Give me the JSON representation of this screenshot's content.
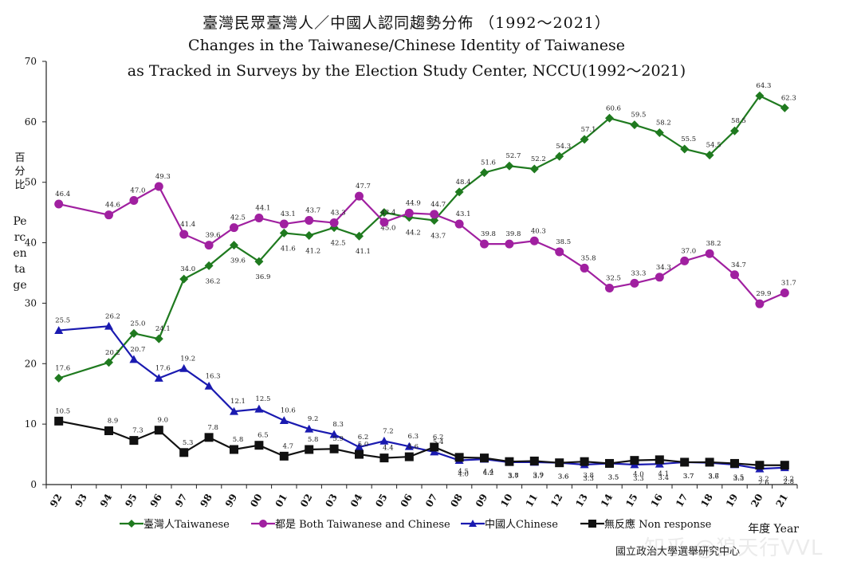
{
  "title_zh": "臺灣民眾臺灣人／中國人認同趨勢分佈 （1992～2021）",
  "title_en_line1": "Changes in the Taiwanese/Chinese Identity of Taiwanese",
  "title_en_line2": "as Tracked in Surveys by the Election Study Center, NCCU(1992～2021)",
  "ylabel_zh": "百分比",
  "ylabel_en": "Percentage",
  "year_label": "年度 Year",
  "source_note": "國立政治大學選舉研究中心",
  "watermark": "知乎 @狼天行VVL",
  "chart_data": {
    "type": "line",
    "title": "Changes in the Taiwanese/Chinese Identity of Taiwanese as Tracked in Surveys by the Election Study Center, NCCU(1992～2021)",
    "xlabel": "年度 Year",
    "ylabel": "百分比 Percentage",
    "ylim": [
      0,
      70
    ],
    "yticks": [
      0,
      10,
      20,
      30,
      40,
      50,
      60,
      70
    ],
    "categories": [
      "92",
      "93",
      "94",
      "95",
      "96",
      "97",
      "98",
      "99",
      "00",
      "01",
      "02",
      "03",
      "04",
      "05",
      "06",
      "07",
      "08",
      "09",
      "10",
      "11",
      "12",
      "13",
      "14",
      "15",
      "16",
      "17",
      "18",
      "19",
      "20",
      "21"
    ],
    "grid": false,
    "legend_position": "bottom",
    "series": [
      {
        "name": "臺灣人Taiwanese",
        "color": "#1f7a1f",
        "marker": "diamond",
        "x": [
          "92",
          "94",
          "95",
          "96",
          "97",
          "98",
          "99",
          "00",
          "01",
          "02",
          "03",
          "04",
          "05",
          "06",
          "07",
          "08",
          "09",
          "10",
          "11",
          "12",
          "13",
          "14",
          "15",
          "16",
          "17",
          "18",
          "19",
          "20",
          "21"
        ],
        "values": [
          17.6,
          20.2,
          25.0,
          24.1,
          34.0,
          36.2,
          39.6,
          36.9,
          41.6,
          41.2,
          42.5,
          41.1,
          45.0,
          44.2,
          43.7,
          48.4,
          51.6,
          52.7,
          52.2,
          54.3,
          57.1,
          60.6,
          59.5,
          58.2,
          55.5,
          54.5,
          58.5,
          64.3,
          62.3
        ],
        "labels": [
          "17.6",
          "20.2",
          "25.0",
          "24.1",
          "34.0",
          "36.2",
          "39.6",
          "36.9",
          "41.6",
          "41.2",
          "42.5",
          "41.1",
          "45.0",
          "44.2",
          "43.7",
          "48.4",
          "51.6",
          "52.7",
          "52.2",
          "54.3",
          "57.1",
          "60.6",
          "59.5",
          "58.2",
          "55.5",
          "54.5",
          "58.5",
          "64.3",
          "62.3"
        ]
      },
      {
        "name": "都是 Both Taiwanese and Chinese",
        "color": "#a020a0",
        "marker": "circle",
        "x": [
          "92",
          "94",
          "95",
          "96",
          "97",
          "98",
          "99",
          "00",
          "01",
          "02",
          "03",
          "04",
          "05",
          "06",
          "07",
          "08",
          "09",
          "10",
          "11",
          "12",
          "13",
          "14",
          "15",
          "16",
          "17",
          "18",
          "19",
          "20",
          "21"
        ],
        "values": [
          46.4,
          44.6,
          47.0,
          49.3,
          41.4,
          39.6,
          42.5,
          44.1,
          43.1,
          43.7,
          43.3,
          47.7,
          43.4,
          44.9,
          44.7,
          43.1,
          39.8,
          39.8,
          40.3,
          38.5,
          35.8,
          32.5,
          33.3,
          34.3,
          37.0,
          38.2,
          34.7,
          29.9,
          31.7
        ],
        "labels": [
          "46.4",
          "44.6",
          "47.0",
          "49.3",
          "41.4",
          "39.6",
          "42.5",
          "44.1",
          "43.1",
          "43.7",
          "43.3",
          "47.7",
          "43.4",
          "44.9",
          "44.7",
          "43.1",
          "39.8",
          "39.8",
          "40.3",
          "38.5",
          "35.8",
          "32.5",
          "33.3",
          "34.3",
          "37.0",
          "38.2",
          "34.7",
          "29.9",
          "31.7"
        ]
      },
      {
        "name": "中國人Chinese",
        "color": "#1a1ab0",
        "marker": "triangle",
        "x": [
          "92",
          "94",
          "95",
          "96",
          "97",
          "98",
          "99",
          "00",
          "01",
          "02",
          "03",
          "04",
          "05",
          "06",
          "07",
          "08",
          "09",
          "10",
          "11",
          "12",
          "13",
          "14",
          "15",
          "16",
          "17",
          "18",
          "19",
          "20",
          "21"
        ],
        "values": [
          25.5,
          26.2,
          20.7,
          17.6,
          19.2,
          16.3,
          12.1,
          12.5,
          10.6,
          9.2,
          8.3,
          6.2,
          7.2,
          6.3,
          5.4,
          4.0,
          4.2,
          3.7,
          3.7,
          3.6,
          3.3,
          3.5,
          3.3,
          3.4,
          3.7,
          3.6,
          3.3,
          2.6,
          2.8
        ],
        "labels": [
          "25.5",
          "26.2",
          "20.7",
          "17.6",
          "19.2",
          "16.3",
          "12.1",
          "12.5",
          "10.6",
          "9.2",
          "8.3",
          "6.2",
          "7.2",
          "6.3",
          "5.4",
          "4.0",
          "4.2",
          "3.7",
          "3.7",
          "3.6",
          "3.3",
          "3.5",
          "3.3",
          "3.4",
          "3.7",
          "3.6",
          "3.3",
          "2.6",
          "2.8"
        ]
      },
      {
        "name": "無反應 Non response",
        "color": "#111111",
        "marker": "square",
        "x": [
          "92",
          "94",
          "95",
          "96",
          "97",
          "98",
          "99",
          "00",
          "01",
          "02",
          "03",
          "04",
          "05",
          "06",
          "07",
          "08",
          "09",
          "10",
          "11",
          "12",
          "13",
          "14",
          "15",
          "16",
          "17",
          "18",
          "19",
          "20",
          "21"
        ],
        "values": [
          10.5,
          8.9,
          7.3,
          9.0,
          5.3,
          7.8,
          5.8,
          6.5,
          4.7,
          5.8,
          5.9,
          5.0,
          4.4,
          4.6,
          6.2,
          4.5,
          4.4,
          3.8,
          3.9,
          3.6,
          3.8,
          3.5,
          4.0,
          4.1,
          3.7,
          3.7,
          3.5,
          3.2,
          3.2
        ],
        "labels": [
          "10.5",
          "8.9",
          "7.3",
          "9.0",
          "5.3",
          "7.8",
          "5.8",
          "6.5",
          "4.7",
          "5.8",
          "5.9",
          "5.0",
          "4.4",
          "4.6",
          "6.2",
          "4.5",
          "4.4",
          "3.8",
          "3.9",
          "3.6",
          "3.8",
          "3.5",
          "4.0",
          "4.1",
          "3.7",
          "3.7",
          "3.5",
          "3.2",
          "3.2"
        ]
      }
    ]
  }
}
